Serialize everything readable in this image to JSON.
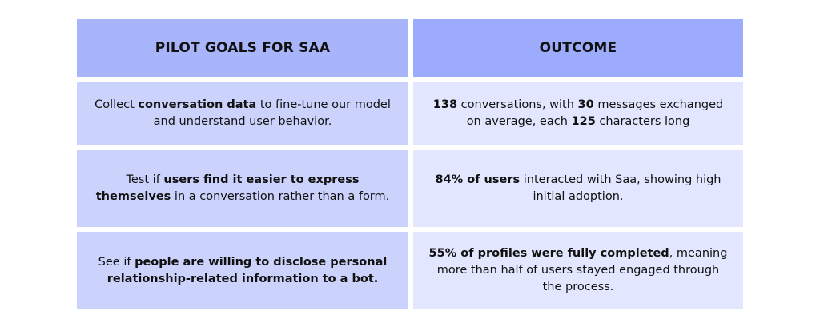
{
  "table": {
    "header": [
      "PILOT GOALS FOR SAA",
      "OUTCOME"
    ],
    "rows": [
      [
        [
          {
            "text": "Collect ",
            "bold": false
          },
          {
            "text": "conversation data",
            "bold": true
          },
          {
            "text": " to fine-tune our model and understand user behavior.",
            "bold": false
          }
        ],
        [
          {
            "text": "138",
            "bold": true
          },
          {
            "text": " conversations, with ",
            "bold": false
          },
          {
            "text": "30",
            "bold": true
          },
          {
            "text": " messages exchanged on average, each ",
            "bold": false
          },
          {
            "text": "125",
            "bold": true
          },
          {
            "text": " characters long",
            "bold": false
          }
        ]
      ],
      [
        [
          {
            "text": "Test if ",
            "bold": false
          },
          {
            "text": "users find it easier to express themselves",
            "bold": true
          },
          {
            "text": " in a conversation rather than a form.",
            "bold": false
          }
        ],
        [
          {
            "text": "84% of users",
            "bold": true
          },
          {
            "text": " interacted with Saa, showing high initial adoption.",
            "bold": false
          }
        ]
      ],
      [
        [
          {
            "text": "See if ",
            "bold": false
          },
          {
            "text": "people are willing to disclose personal relationship-related information to a bot.",
            "bold": true
          }
        ],
        [
          {
            "text": "55% of profiles were fully completed",
            "bold": true
          },
          {
            "text": ", meaning more than half of users stayed engaged through the process.",
            "bold": false
          }
        ]
      ]
    ]
  }
}
